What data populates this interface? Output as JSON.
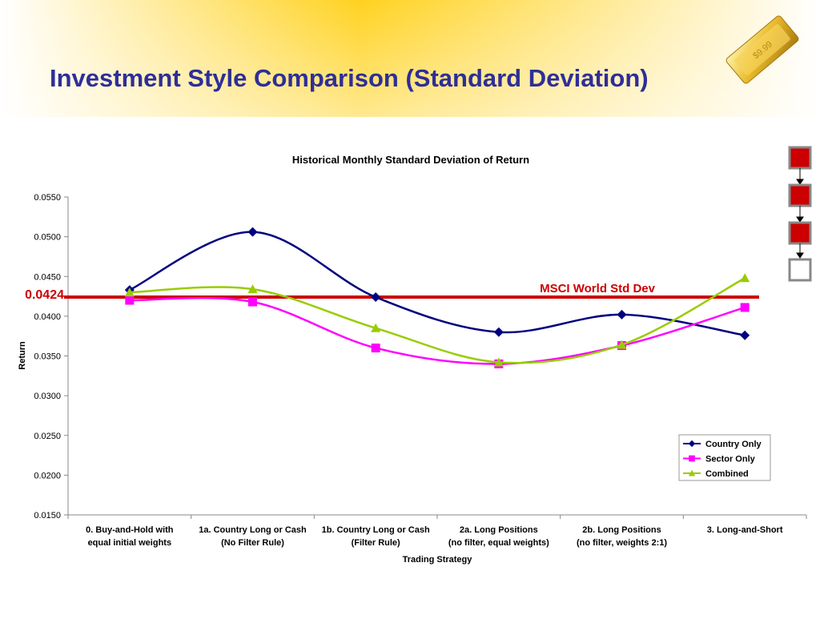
{
  "slide_title": "Investment Style Comparison (Standard Deviation)",
  "badge_text": "$9.99",
  "chart_data": {
    "type": "line",
    "title": "Historical Monthly Standard Deviation of Return",
    "x_label": "Trading Strategy",
    "y_label": "Return",
    "categories": [
      [
        "0. Buy-and-Hold with",
        "equal initial weights"
      ],
      [
        "1a. Country Long or Cash",
        "(No Filter Rule)"
      ],
      [
        "1b. Country Long or Cash",
        "(Filter Rule)"
      ],
      [
        "2a. Long Positions",
        "(no filter, equal weights)"
      ],
      [
        "2b. Long Positions",
        "(no filter, weights 2:1)"
      ],
      [
        "3. Long-and-Short"
      ]
    ],
    "series": [
      {
        "name": "Country Only",
        "color": "#000080",
        "marker": "diamond",
        "values": [
          0.0433,
          0.0506,
          0.0424,
          0.038,
          0.0402,
          0.0376
        ]
      },
      {
        "name": "Sector Only",
        "color": "#ff00ff",
        "marker": "square",
        "values": [
          0.042,
          0.0418,
          0.036,
          0.034,
          0.0363,
          0.0411
        ]
      },
      {
        "name": "Combined",
        "color": "#99cc00",
        "marker": "triangle",
        "values": [
          0.043,
          0.0434,
          0.0385,
          0.0342,
          0.0364,
          0.0448
        ]
      }
    ],
    "ylim": [
      0.015,
      0.055
    ],
    "yticks": [
      {
        "value": 0.015,
        "label": "0.0150"
      },
      {
        "value": 0.02,
        "label": "0.0200"
      },
      {
        "value": 0.025,
        "label": "0.0250"
      },
      {
        "value": 0.03,
        "label": "0.0300"
      },
      {
        "value": 0.035,
        "label": "0.0350"
      },
      {
        "value": 0.04,
        "label": "0.0400"
      },
      {
        "value": 0.045,
        "label": "0.0450"
      },
      {
        "value": 0.05,
        "label": "0.0500"
      },
      {
        "value": 0.055,
        "label": "0.0550"
      }
    ],
    "reference_line": {
      "name": "MSCI World Std Dev",
      "value": 0.0424,
      "color": "#cc0000"
    },
    "smooth": true,
    "legend": "right"
  }
}
